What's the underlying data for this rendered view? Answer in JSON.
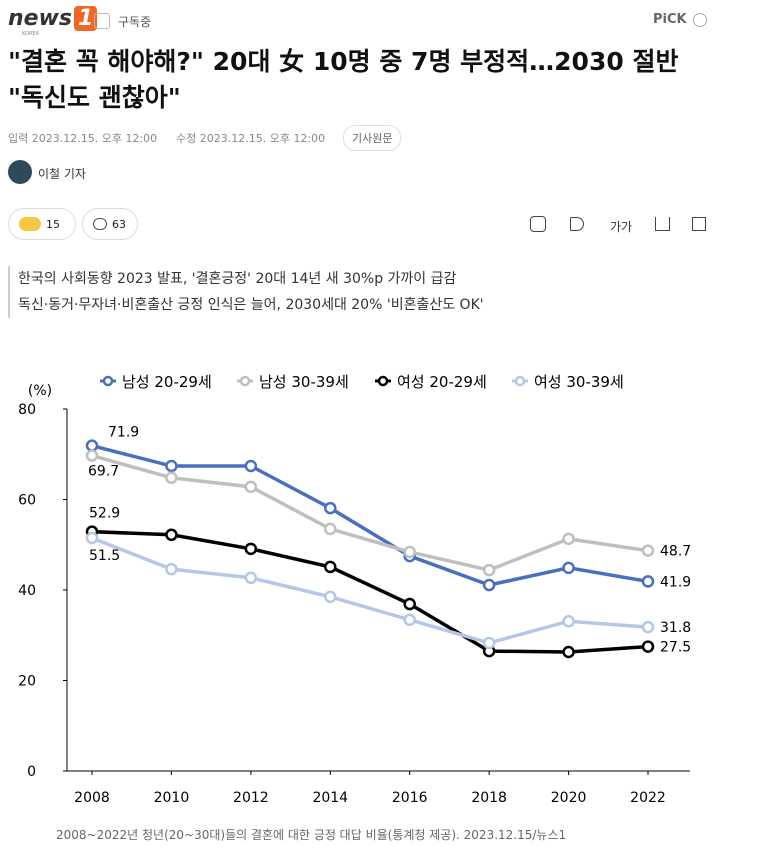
{
  "header": {
    "logo": "news",
    "logo_number": "1",
    "logo_sub": "KOREA",
    "subscribe": "구독중",
    "pick": "PiCK"
  },
  "article": {
    "title": "\"결혼 꼭 해야해?\" 20대 女 10명 중 7명 부정적…2030 절반 \"독신도 괜찮아\"",
    "input_time": "입력 2023.12.15. 오후 12:00",
    "edit_time": "수정 2023.12.15. 오후 12:00",
    "original": "기사원문",
    "reporter": "이철 기자",
    "reactions": "15",
    "comments": "63",
    "font_size": "가가",
    "summary": [
      "한국의 사회동향 2023 발표, '결혼긍정' 20대 14년 새 30%p 가까이 급감",
      "독신·동거·무자녀·비혼출산 긍정 인식은 늘어, 2030세대 20% '비혼출산도 OK'"
    ],
    "caption": "2008~2022년 청년(20~30대)들의 결혼에 대한 긍정 대답 비율(통계청 제공). 2023.12.15/뉴스1"
  },
  "chart_data": {
    "type": "line",
    "ylabel": "(%)",
    "categories": [
      "2008",
      "2010",
      "2012",
      "2014",
      "2016",
      "2018",
      "2020",
      "2022"
    ],
    "series": [
      {
        "name": "남성 20-29세",
        "color": "#4a6fbf",
        "values": [
          71.9,
          67.4,
          67.4,
          58.1,
          47.5,
          41.1,
          44.9,
          41.9
        ]
      },
      {
        "name": "남성 30-39세",
        "color": "#bfbfbf",
        "values": [
          69.7,
          64.8,
          62.8,
          53.5,
          48.4,
          44.4,
          51.3,
          48.7
        ]
      },
      {
        "name": "여성 20-29세",
        "color": "#000000",
        "values": [
          52.9,
          52.2,
          49.1,
          45.1,
          36.9,
          26.5,
          26.3,
          27.5
        ]
      },
      {
        "name": "여성 30-39세",
        "color": "#b4c7e7",
        "values": [
          51.5,
          44.6,
          42.7,
          38.5,
          33.4,
          28.3,
          33.1,
          31.8
        ]
      }
    ],
    "ylim": [
      0,
      80
    ],
    "yticks": [
      0,
      20,
      40,
      60,
      80
    ]
  }
}
